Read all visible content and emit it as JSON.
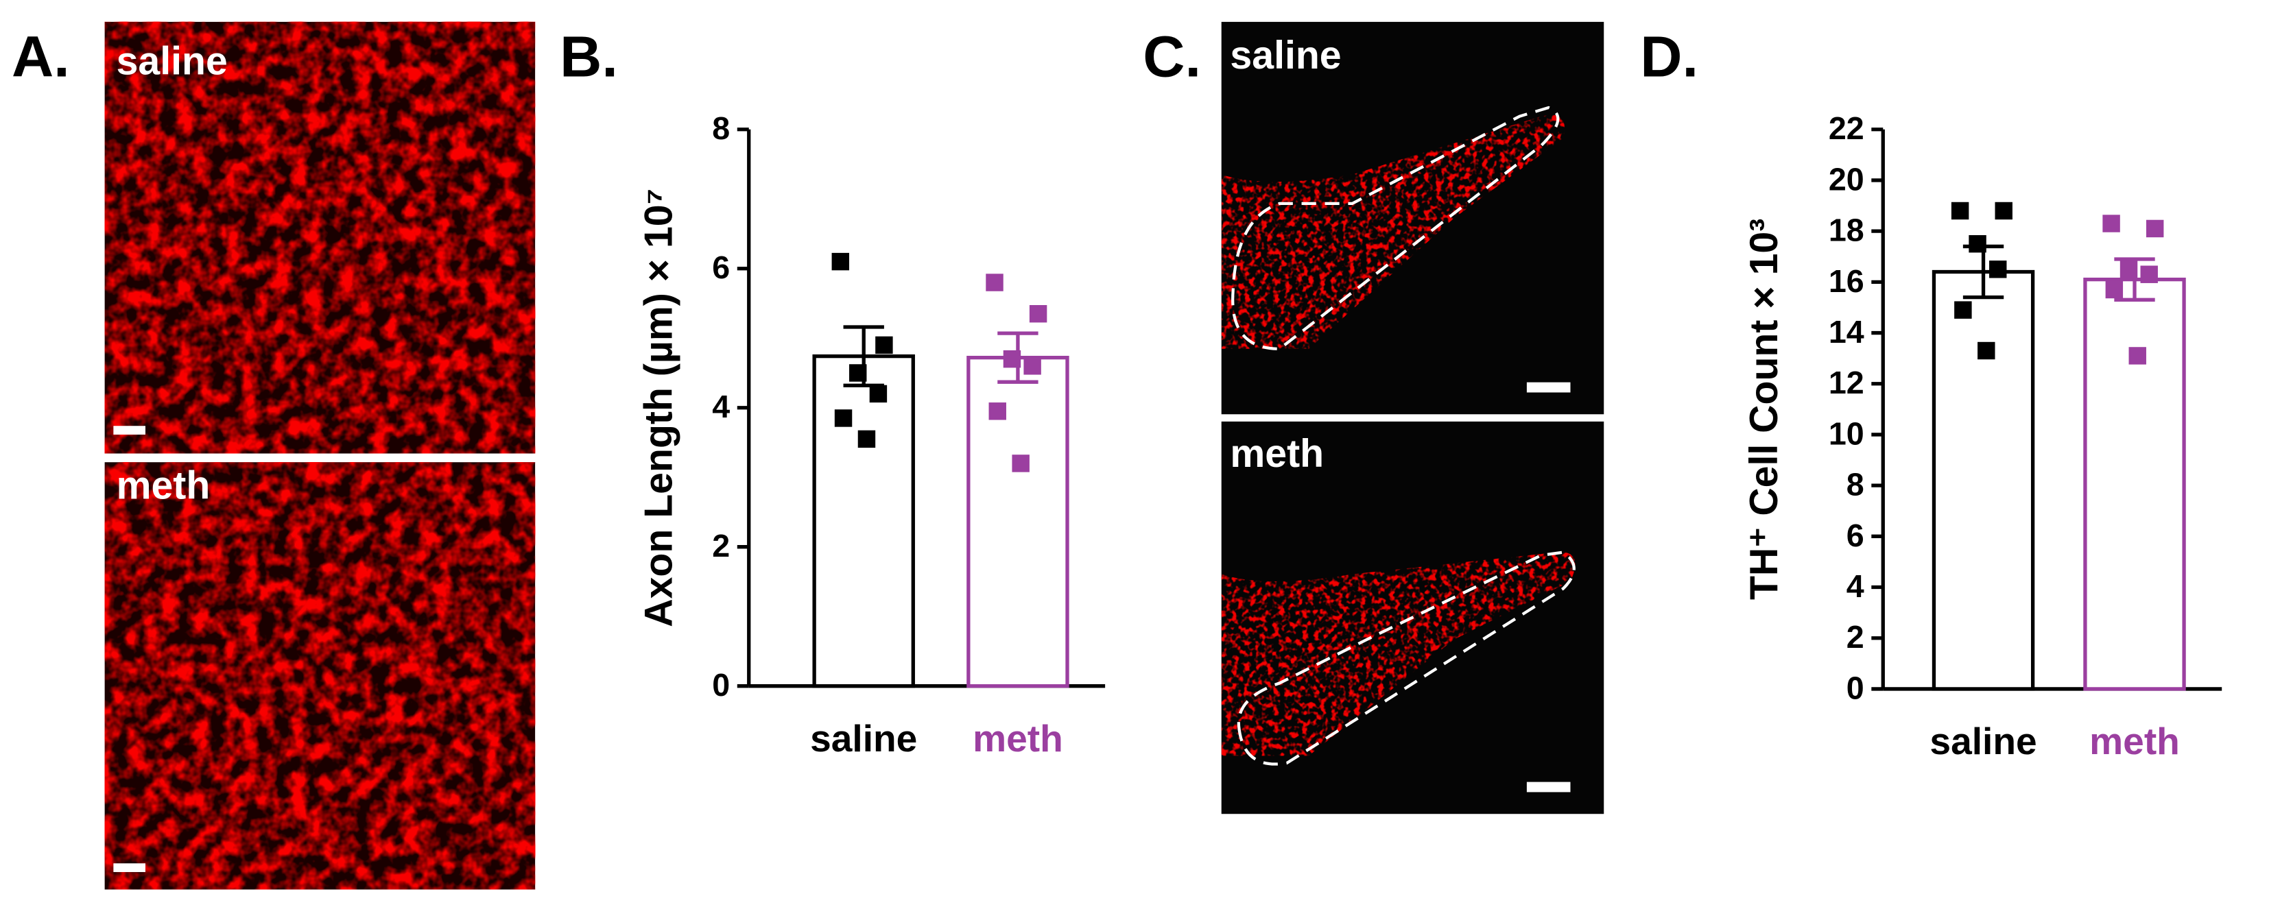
{
  "figure": {
    "panels": [
      {
        "letter": "A.",
        "images": [
          "saline",
          "meth"
        ]
      },
      {
        "letter": "B."
      },
      {
        "letter": "C.",
        "images": [
          "saline",
          "meth"
        ]
      },
      {
        "letter": "D."
      }
    ]
  },
  "chart_data": [
    {
      "type": "bar",
      "ylabel": "Axon Length (µm) × 10⁷",
      "categories": [
        "saline",
        "meth"
      ],
      "colors": [
        "#000000",
        "#9b3fa0"
      ],
      "values": [
        4.74,
        4.72
      ],
      "errors": [
        0.42,
        0.35
      ],
      "points": [
        [
          6.1,
          4.9,
          4.5,
          4.2,
          3.85,
          3.55
        ],
        [
          5.8,
          5.35,
          4.7,
          4.6,
          3.95,
          3.2
        ]
      ],
      "ylim": [
        0,
        8
      ],
      "yticks": [
        0,
        2,
        4,
        6,
        8
      ]
    },
    {
      "type": "bar",
      "ylabel": "TH⁺ Cell Count × 10³",
      "categories": [
        "saline",
        "meth"
      ],
      "colors": [
        "#000000",
        "#9b3fa0"
      ],
      "values": [
        16.4,
        16.1
      ],
      "errors": [
        1.0,
        0.8
      ],
      "points": [
        [
          18.8,
          18.8,
          17.5,
          16.5,
          14.9,
          13.3
        ],
        [
          18.3,
          18.1,
          16.5,
          16.3,
          15.7,
          13.1
        ]
      ],
      "ylim": [
        0,
        22
      ],
      "yticks": [
        0,
        2,
        4,
        6,
        8,
        10,
        12,
        14,
        16,
        18,
        20,
        22
      ]
    }
  ]
}
